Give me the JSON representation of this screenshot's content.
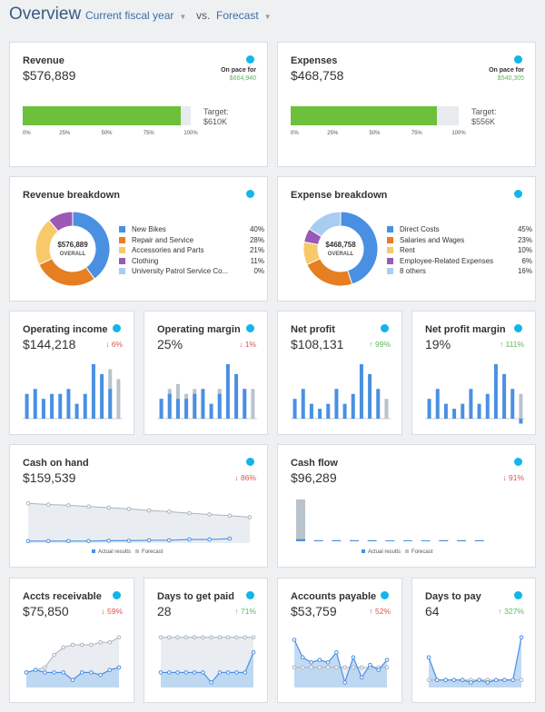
{
  "header": {
    "title": "Overview",
    "period": "Current fiscal year",
    "vs": "vs.",
    "compare": "Forecast"
  },
  "colors": {
    "accent": "#3a6fa8",
    "bar_blue": "#4a90e2",
    "bar_gray": "#b9c3cc",
    "progress_green": "#6cc03b",
    "xero_badge": "#13b5ea",
    "negative": "#d9534f",
    "positive": "#5cb85c"
  },
  "revenue": {
    "title": "Revenue",
    "value": "$576,889",
    "pace_label": "On pace for",
    "pace_value": "$664,940",
    "progress": 0.94,
    "target_label": "Target:",
    "target_value": "$610K",
    "ticks": [
      "0%",
      "25%",
      "50%",
      "75%",
      "100%"
    ]
  },
  "expenses": {
    "title": "Expenses",
    "value": "$468,758",
    "pace_label": "On pace for",
    "pace_value": "$540,305",
    "progress": 0.87,
    "target_label": "Target:",
    "target_value": "$556K",
    "ticks": [
      "0%",
      "25%",
      "50%",
      "75%",
      "100%"
    ]
  },
  "revenue_breakdown": {
    "title": "Revenue breakdown",
    "center_value": "$576,889",
    "center_label": "OVERALL",
    "items": [
      {
        "label": "New Bikes",
        "pct": "40%",
        "value": 40,
        "color": "#4a90e2"
      },
      {
        "label": "Repair and Service",
        "pct": "28%",
        "value": 28,
        "color": "#e67e22"
      },
      {
        "label": "Accessories and Parts",
        "pct": "21%",
        "value": 21,
        "color": "#f7c96a"
      },
      {
        "label": "Clothing",
        "pct": "11%",
        "value": 11,
        "color": "#9b59b6"
      },
      {
        "label": "University Patrol Service Co...",
        "pct": "0%",
        "value": 0,
        "color": "#a9cdf0"
      }
    ]
  },
  "expense_breakdown": {
    "title": "Expense breakdown",
    "center_value": "$468,758",
    "center_label": "OVERALL",
    "items": [
      {
        "label": "Direct Costs",
        "pct": "45%",
        "value": 45,
        "color": "#4a90e2"
      },
      {
        "label": "Salaries and Wages",
        "pct": "23%",
        "value": 23,
        "color": "#e67e22"
      },
      {
        "label": "Rent",
        "pct": "10%",
        "value": 10,
        "color": "#f7c96a"
      },
      {
        "label": "Employee-Related Expenses",
        "pct": "6%",
        "value": 6,
        "color": "#9b59b6"
      },
      {
        "label": "8 others",
        "pct": "16%",
        "value": 16,
        "color": "#a9cdf0"
      }
    ]
  },
  "operating_income": {
    "title": "Operating income",
    "value": "$144,218",
    "change": "6%",
    "direction": "down"
  },
  "operating_margin": {
    "title": "Operating margin",
    "value": "25%",
    "change": "1%",
    "direction": "down"
  },
  "net_profit": {
    "title": "Net profit",
    "value": "$108,131",
    "change": "99%",
    "direction": "up"
  },
  "net_profit_margin": {
    "title": "Net profit margin",
    "value": "19%",
    "change": "111%",
    "direction": "up"
  },
  "cash_on_hand": {
    "title": "Cash on hand",
    "value": "$159,539",
    "change": "86%",
    "direction": "down"
  },
  "cash_flow": {
    "title": "Cash flow",
    "value": "$96,289",
    "change": "91%",
    "direction": "down"
  },
  "chart_legend": {
    "actual": "Actual results",
    "forecast": "Forecast"
  },
  "accts_receivable": {
    "title": "Accts receivable",
    "value": "$75,850",
    "change": "59%",
    "direction": "down"
  },
  "days_to_get_paid": {
    "title": "Days to get paid",
    "value": "28",
    "change": "71%",
    "direction": "up"
  },
  "accounts_payable": {
    "title": "Accounts payable",
    "value": "$53,759",
    "change": "52%",
    "direction": "up"
  },
  "days_to_pay": {
    "title": "Days to pay",
    "value": "64",
    "change": "327%",
    "direction": "up"
  },
  "chart_data": [
    {
      "type": "bar",
      "name": "operating_income",
      "series": [
        {
          "name": "Actual results",
          "values": [
            5,
            6,
            4,
            5,
            5,
            6,
            3,
            5,
            11,
            9,
            6,
            0
          ]
        },
        {
          "name": "Forecast",
          "values": [
            0,
            0,
            0,
            0,
            0,
            0,
            0,
            0,
            0,
            0,
            10,
            8
          ]
        }
      ]
    },
    {
      "type": "bar",
      "name": "operating_margin",
      "series": [
        {
          "name": "Actual results",
          "values": [
            4,
            5,
            4,
            4,
            5,
            6,
            3,
            5,
            11,
            9,
            6,
            0
          ]
        },
        {
          "name": "Forecast",
          "values": [
            4,
            6,
            7,
            5,
            6,
            4,
            0,
            6,
            0,
            7,
            6,
            6
          ]
        }
      ]
    },
    {
      "type": "bar",
      "name": "net_profit",
      "series": [
        {
          "name": "Actual results",
          "values": [
            4,
            6,
            3,
            2,
            3,
            6,
            3,
            5,
            11,
            9,
            6,
            0
          ]
        },
        {
          "name": "Forecast",
          "values": [
            0,
            0,
            0,
            0,
            0,
            0,
            0,
            0,
            0,
            0,
            0,
            4
          ]
        }
      ]
    },
    {
      "type": "bar",
      "name": "net_profit_margin",
      "series": [
        {
          "name": "Actual results",
          "values": [
            4,
            6,
            3,
            2,
            3,
            6,
            3,
            5,
            11,
            9,
            6,
            -1
          ]
        },
        {
          "name": "Forecast",
          "values": [
            0,
            0,
            0,
            0,
            0,
            0,
            0,
            0,
            0,
            0,
            0,
            5
          ]
        }
      ]
    },
    {
      "type": "line",
      "name": "cash_on_hand",
      "series": [
        {
          "name": "Forecast",
          "values": [
            10,
            9.7,
            9.5,
            9.2,
            8.9,
            8.6,
            8.2,
            7.9,
            7.5,
            7.2,
            6.9,
            6.5
          ]
        },
        {
          "name": "Actual results",
          "values": [
            0.5,
            0.5,
            0.5,
            0.5,
            0.6,
            0.6,
            0.7,
            0.7,
            0.9,
            0.9,
            1.1
          ]
        }
      ]
    },
    {
      "type": "bar",
      "name": "cash_flow",
      "series": [
        {
          "name": "Actual results",
          "values": [
            0.5,
            0.2,
            0.1,
            0.1,
            0.1,
            0.1,
            0.1,
            0.1,
            0.1,
            0.1,
            0.1,
            0
          ]
        },
        {
          "name": "Forecast",
          "values": [
            10,
            0.3,
            0.3,
            0.3,
            0.3,
            0.2,
            0,
            0,
            0.3,
            0.3,
            0.3,
            0
          ]
        }
      ]
    },
    {
      "type": "area",
      "name": "accts_receivable",
      "series": [
        {
          "name": "Actual results",
          "values": [
            3,
            3.5,
            3,
            3,
            3,
            1.5,
            3,
            3,
            2.5,
            3.5,
            4
          ]
        },
        {
          "name": "Forecast",
          "values": [
            3,
            3.5,
            4,
            6.5,
            8,
            8.5,
            8.5,
            8.5,
            9,
            9,
            10
          ]
        }
      ]
    },
    {
      "type": "area",
      "name": "days_to_get_paid",
      "series": [
        {
          "name": "Actual results",
          "values": [
            3,
            3,
            3,
            3,
            3,
            3,
            1,
            3,
            3,
            3,
            3,
            7
          ]
        },
        {
          "name": "Forecast",
          "values": [
            10,
            10,
            10,
            10,
            10,
            10,
            10,
            10,
            10,
            10,
            10,
            10
          ]
        }
      ]
    },
    {
      "type": "area",
      "name": "accounts_payable",
      "series": [
        {
          "name": "Actual results",
          "values": [
            9.5,
            6,
            5,
            5.5,
            5,
            7,
            1,
            6,
            2,
            4.5,
            3.5,
            5.5
          ]
        },
        {
          "name": "Forecast",
          "values": [
            4,
            4,
            4,
            4,
            4,
            4,
            4,
            4,
            4,
            4,
            4,
            4
          ]
        }
      ]
    },
    {
      "type": "area",
      "name": "days_to_pay",
      "series": [
        {
          "name": "Actual results",
          "values": [
            6,
            1.5,
            1.5,
            1.5,
            1.5,
            1,
            1.5,
            1,
            1.5,
            1.5,
            1.5,
            10
          ]
        },
        {
          "name": "Forecast",
          "values": [
            1.5,
            1.5,
            1.5,
            1.5,
            1.5,
            1.5,
            1.5,
            1.5,
            1.5,
            1.5,
            1.5,
            1.5
          ]
        }
      ]
    }
  ]
}
